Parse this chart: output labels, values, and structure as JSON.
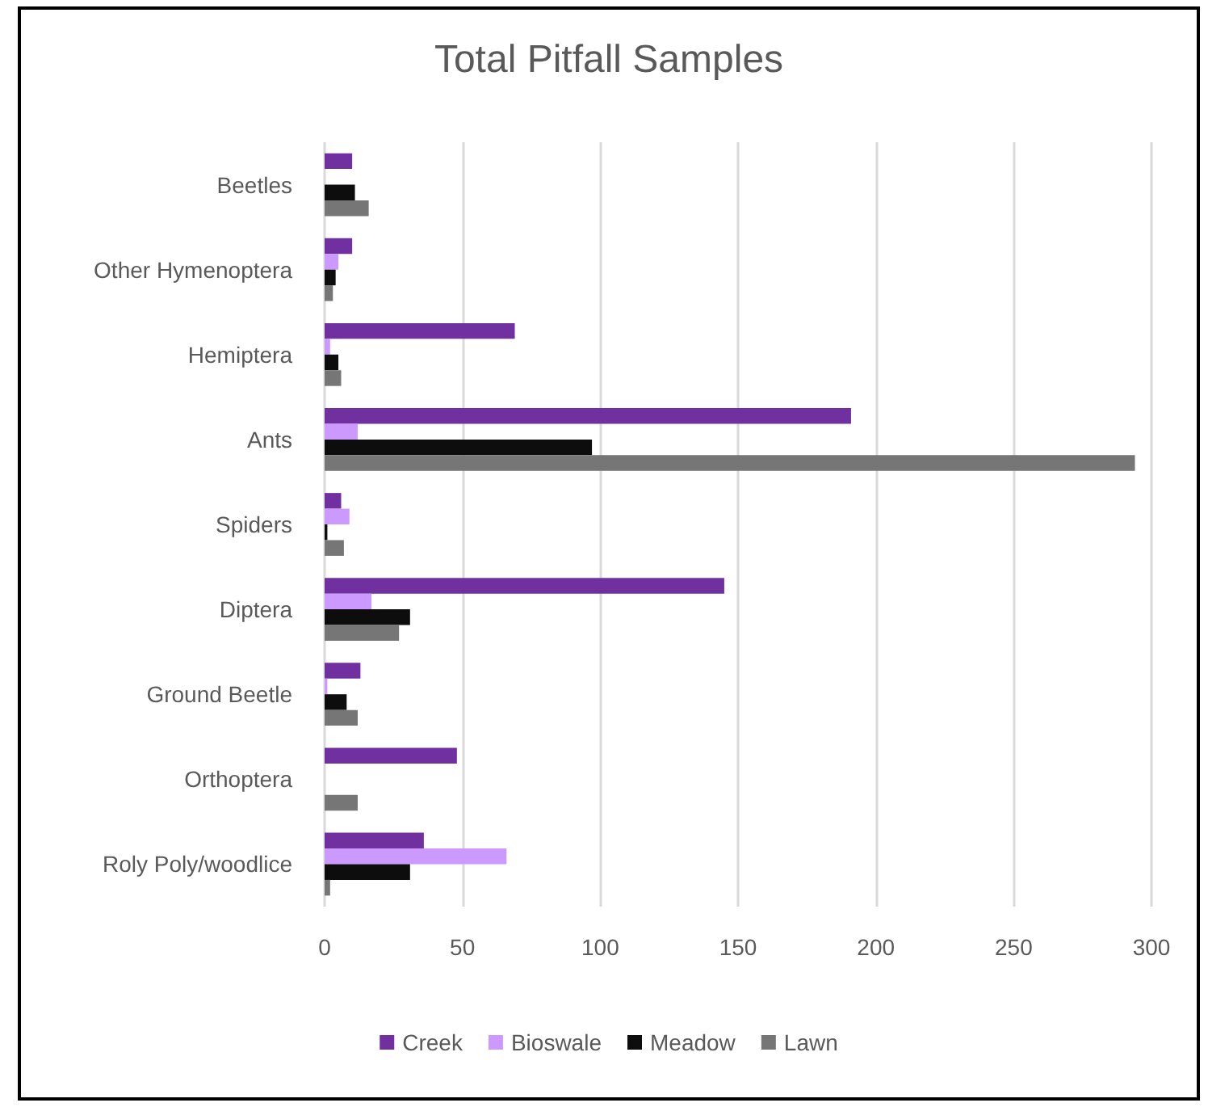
{
  "chart_data": {
    "type": "bar",
    "orientation": "horizontal",
    "title": "Total Pitfall Samples",
    "categories": [
      "Beetles",
      "Other Hymenoptera",
      "Hemiptera",
      "Ants",
      "Spiders",
      "Diptera",
      "Ground Beetle",
      "Orthoptera",
      "Roly Poly/woodlice"
    ],
    "series": [
      {
        "name": "Creek",
        "color": "#7030a0",
        "values": [
          10,
          10,
          69,
          191,
          6,
          145,
          13,
          48,
          36
        ]
      },
      {
        "name": "Bioswale",
        "color": "#cc99ff",
        "values": [
          0,
          5,
          2,
          12,
          9,
          17,
          1,
          0,
          66
        ]
      },
      {
        "name": "Meadow",
        "color": "#0d0d0d",
        "values": [
          11,
          4,
          5,
          97,
          1,
          31,
          8,
          0,
          31
        ]
      },
      {
        "name": "Lawn",
        "color": "#767676",
        "values": [
          16,
          3,
          6,
          294,
          7,
          27,
          12,
          12,
          2
        ]
      }
    ],
    "xlim": [
      0,
      300
    ],
    "xticks": [
      0,
      50,
      100,
      150,
      200,
      250,
      300
    ],
    "grid": "x",
    "legend": "bottom"
  }
}
